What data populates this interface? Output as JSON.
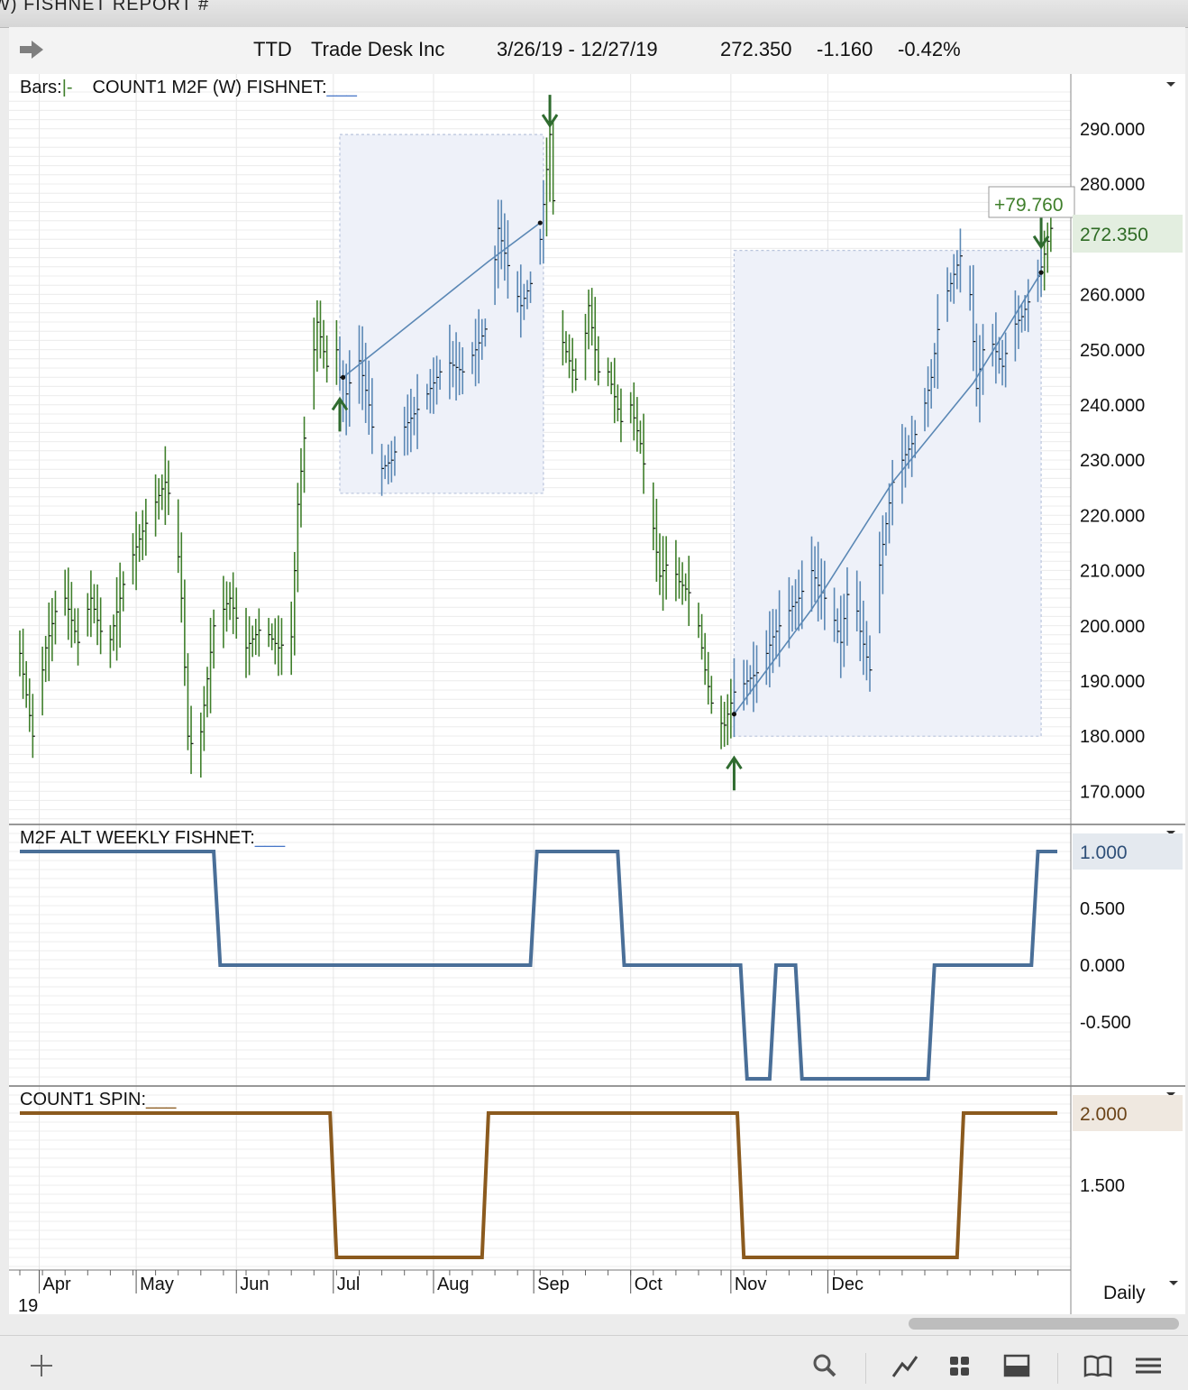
{
  "window": {
    "title": "W) FISHNET  REPORT #"
  },
  "header": {
    "symbol": "TTD",
    "name": "Trade Desk Inc",
    "range": "3/26/19 - 12/27/19",
    "last": "272.350",
    "change": "-1.160",
    "change_pct": "-0.42%"
  },
  "panes": {
    "price": {
      "label_prefix": "Bars:",
      "label_bar_glyph": "|-",
      "label_study": "COUNT1 M2F (W) FISHNET:",
      "label_line": "___",
      "gain_box": "+79.760",
      "last_tag": "272.350"
    },
    "m2f": {
      "label": "M2F ALT WEEKLY FISHNET:",
      "label_line": "___",
      "last_tag": "1.000"
    },
    "spin": {
      "label": "COUNT1 SPIN:",
      "label_line": "___",
      "last_tag": "2.000"
    }
  },
  "axis": {
    "months": [
      "Apr",
      "May",
      "Jun",
      "Jul",
      "Aug",
      "Sep",
      "Oct",
      "Nov",
      "Dec"
    ],
    "year": "19",
    "interval": "Daily"
  },
  "chart_data": [
    {
      "type": "ohlc",
      "title": "COUNT1 M2F (W) FISHNET",
      "x_range": [
        "2019-03-26",
        "2019-12-27"
      ],
      "ylim": [
        165,
        295
      ],
      "yticks": [
        170,
        180,
        190,
        200,
        210,
        220,
        230,
        240,
        250,
        260,
        270,
        280,
        290
      ],
      "grid": true,
      "last_value": 272.35,
      "colors": {
        "up_segment": "#3f7f2b",
        "fishnet_segment": "#5b88b5"
      },
      "price_path": [
        [
          0,
          195
        ],
        [
          4,
          180
        ],
        [
          8,
          196
        ],
        [
          13,
          207
        ],
        [
          18,
          197
        ],
        [
          22,
          205
        ],
        [
          27,
          195
        ],
        [
          33,
          210
        ],
        [
          40,
          220
        ],
        [
          45,
          226
        ],
        [
          48,
          220
        ],
        [
          50,
          205
        ],
        [
          52,
          180
        ],
        [
          55,
          176
        ],
        [
          60,
          200
        ],
        [
          65,
          205
        ],
        [
          70,
          196
        ],
        [
          75,
          200
        ],
        [
          80,
          196
        ],
        [
          84,
          198
        ],
        [
          86,
          222
        ],
        [
          89,
          240
        ],
        [
          92,
          255
        ],
        [
          95,
          247
        ],
        [
          98,
          250
        ],
        [
          100,
          240
        ],
        [
          102,
          244
        ],
        [
          105,
          248
        ],
        [
          108,
          240
        ],
        [
          111,
          228
        ],
        [
          115,
          230
        ],
        [
          119,
          236
        ],
        [
          124,
          240
        ],
        [
          128,
          244
        ],
        [
          132,
          248
        ],
        [
          137,
          246
        ],
        [
          141,
          250
        ],
        [
          145,
          255
        ],
        [
          148,
          272
        ],
        [
          152,
          263
        ],
        [
          155,
          258
        ],
        [
          158,
          262
        ],
        [
          161,
          270
        ],
        [
          164,
          289
        ],
        [
          167,
          253
        ],
        [
          170,
          248
        ],
        [
          173,
          243
        ],
        [
          176,
          258
        ],
        [
          179,
          246
        ],
        [
          182,
          246
        ],
        [
          186,
          237
        ],
        [
          189,
          240
        ],
        [
          192,
          233
        ],
        [
          195,
          222
        ],
        [
          198,
          209
        ],
        [
          201,
          212
        ],
        [
          204,
          208
        ],
        [
          207,
          206
        ],
        [
          210,
          200
        ],
        [
          212,
          192
        ],
        [
          215,
          183
        ],
        [
          218,
          182
        ],
        [
          221,
          188
        ],
        [
          225,
          190
        ],
        [
          229,
          192
        ],
        [
          233,
          198
        ],
        [
          237,
          202
        ],
        [
          241,
          205
        ],
        [
          245,
          210
        ],
        [
          248,
          206
        ],
        [
          251,
          203
        ],
        [
          254,
          197
        ],
        [
          257,
          210
        ],
        [
          260,
          199
        ],
        [
          263,
          192
        ],
        [
          266,
          211
        ],
        [
          270,
          226
        ],
        [
          273,
          230
        ],
        [
          276,
          233
        ],
        [
          279,
          238
        ],
        [
          282,
          245
        ],
        [
          285,
          258
        ],
        [
          288,
          262
        ],
        [
          291,
          267
        ],
        [
          294,
          260
        ],
        [
          296,
          243
        ],
        [
          298,
          250
        ],
        [
          301,
          251
        ],
        [
          304,
          247
        ],
        [
          307,
          254
        ],
        [
          310,
          256
        ],
        [
          313,
          260
        ],
        [
          316,
          265
        ],
        [
          319,
          272
        ],
        [
          321,
          274
        ]
      ],
      "fishnet_regions": [
        {
          "x0": 99,
          "x1": 162,
          "y0": 224,
          "y1": 289
        },
        {
          "x0": 221,
          "x1": 316,
          "y0": 180,
          "y1": 268
        }
      ],
      "trend_lines": [
        {
          "points": [
            [
              100,
              245
            ],
            [
              115,
              252
            ],
            [
              130,
              259
            ],
            [
              145,
              266
            ],
            [
              161,
              273
            ]
          ]
        },
        {
          "points": [
            [
              221,
              184
            ],
            [
              245,
              203
            ],
            [
              270,
              226
            ],
            [
              295,
              244
            ],
            [
              316,
              264
            ]
          ]
        }
      ],
      "signals": [
        {
          "type": "up",
          "x": 99,
          "price": 245
        },
        {
          "type": "down",
          "x": 164,
          "price": 289
        },
        {
          "type": "up",
          "x": 221,
          "price": 180
        },
        {
          "type": "down",
          "x": 316,
          "price": 267
        }
      ]
    },
    {
      "type": "line",
      "title": "M2F ALT WEEKLY FISHNET",
      "ylim": [
        -1,
        1
      ],
      "yticks": [
        1.0,
        0.5,
        0.0,
        -0.5
      ],
      "color": "#4a6f98",
      "points": [
        [
          0,
          1
        ],
        [
          60,
          1
        ],
        [
          62,
          0
        ],
        [
          158,
          0
        ],
        [
          160,
          1
        ],
        [
          185,
          1
        ],
        [
          187,
          0
        ],
        [
          223,
          0
        ],
        [
          225,
          -1
        ],
        [
          232,
          -1
        ],
        [
          234,
          0
        ],
        [
          240,
          0
        ],
        [
          242,
          -1
        ],
        [
          281,
          -1
        ],
        [
          283,
          0
        ],
        [
          313,
          0
        ],
        [
          315,
          1
        ],
        [
          321,
          1
        ]
      ]
    },
    {
      "type": "line",
      "title": "COUNT1 SPIN",
      "ylim": [
        1.0,
        2.0
      ],
      "yticks": [
        2.0,
        1.5
      ],
      "color": "#8b5a1e",
      "points": [
        [
          0,
          2
        ],
        [
          96,
          2
        ],
        [
          98,
          1
        ],
        [
          143,
          1
        ],
        [
          145,
          2
        ],
        [
          222,
          2
        ],
        [
          224,
          1
        ],
        [
          290,
          1
        ],
        [
          292,
          2
        ],
        [
          321,
          2
        ]
      ]
    }
  ]
}
